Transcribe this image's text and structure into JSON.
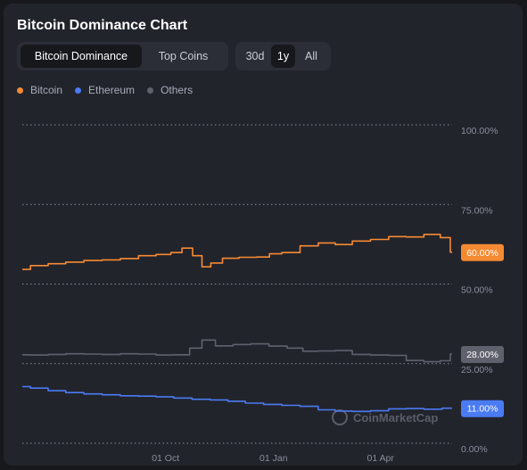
{
  "title": "Bitcoin Dominance Chart",
  "tabs": [
    {
      "label": "Bitcoin Dominance",
      "active": true
    },
    {
      "label": "Top Coins",
      "active": false
    }
  ],
  "ranges": [
    {
      "label": "30d",
      "active": false
    },
    {
      "label": "1y",
      "active": true
    },
    {
      "label": "All",
      "active": false
    }
  ],
  "legend": [
    {
      "label": "Bitcoin",
      "color": "#f68a32"
    },
    {
      "label": "Ethereum",
      "color": "#4a7bf2"
    },
    {
      "label": "Others",
      "color": "#5f626c"
    }
  ],
  "watermark": "CoinMarketCap",
  "chart_data": {
    "type": "line",
    "title": "Bitcoin Dominance Chart",
    "y_tick_labels": [
      "100.00%",
      "75.00%",
      "50.00%",
      "25.00%",
      "0.00%"
    ],
    "y_ticks": [
      100,
      75,
      50,
      25,
      0
    ],
    "ylim": [
      0,
      100
    ],
    "x_tick_labels": [
      "01 Oct",
      "01 Jan",
      "01 Apr"
    ],
    "x_tick_dates": [
      "2023-10-01",
      "2024-01-01",
      "2024-04-01"
    ],
    "xlim": [
      "2023-06-01",
      "2024-06-01"
    ],
    "grid": "horizontal-dotted",
    "legend_position": "top-left",
    "series": [
      {
        "name": "Bitcoin",
        "color": "#f68a32",
        "current_label": "60.00%",
        "points": [
          [
            "2023-06-01",
            54.6
          ],
          [
            "2023-06-15",
            55.8
          ],
          [
            "2023-07-01",
            56.4
          ],
          [
            "2023-07-15",
            56.9
          ],
          [
            "2023-08-01",
            57.4
          ],
          [
            "2023-08-15",
            57.6
          ],
          [
            "2023-09-01",
            58.0
          ],
          [
            "2023-09-15",
            58.9
          ],
          [
            "2023-10-01",
            59.3
          ],
          [
            "2023-10-10",
            59.9
          ],
          [
            "2023-10-20",
            61.3
          ],
          [
            "2023-10-28",
            58.9
          ],
          [
            "2023-11-05",
            55.4
          ],
          [
            "2023-11-12",
            56.6
          ],
          [
            "2023-11-25",
            58.1
          ],
          [
            "2023-12-10",
            58.4
          ],
          [
            "2023-12-25",
            58.5
          ],
          [
            "2024-01-01",
            59.5
          ],
          [
            "2024-01-15",
            59.9
          ],
          [
            "2024-02-01",
            62.0
          ],
          [
            "2024-02-15",
            62.9
          ],
          [
            "2024-03-01",
            62.4
          ],
          [
            "2024-03-15",
            63.5
          ],
          [
            "2024-04-01",
            64.0
          ],
          [
            "2024-04-15",
            64.9
          ],
          [
            "2024-05-01",
            64.8
          ],
          [
            "2024-05-15",
            65.6
          ],
          [
            "2024-05-29",
            64.6
          ],
          [
            "2024-06-01",
            60.0
          ]
        ]
      },
      {
        "name": "Ethereum",
        "color": "#4a7bf2",
        "current_label": "11.00%",
        "points": [
          [
            "2023-06-01",
            17.8
          ],
          [
            "2023-06-15",
            17.3
          ],
          [
            "2023-07-01",
            16.5
          ],
          [
            "2023-07-15",
            15.9
          ],
          [
            "2023-08-01",
            15.5
          ],
          [
            "2023-08-15",
            15.2
          ],
          [
            "2023-09-01",
            14.9
          ],
          [
            "2023-09-15",
            14.8
          ],
          [
            "2023-10-01",
            14.6
          ],
          [
            "2023-10-15",
            14.2
          ],
          [
            "2023-11-01",
            13.8
          ],
          [
            "2023-11-15",
            13.6
          ],
          [
            "2023-12-01",
            13.2
          ],
          [
            "2023-12-15",
            12.6
          ],
          [
            "2024-01-01",
            12.2
          ],
          [
            "2024-01-15",
            11.9
          ],
          [
            "2024-02-01",
            11.6
          ],
          [
            "2024-02-15",
            10.5
          ],
          [
            "2024-03-01",
            10.1
          ],
          [
            "2024-03-15",
            10.0
          ],
          [
            "2024-04-01",
            10.2
          ],
          [
            "2024-04-15",
            10.8
          ],
          [
            "2024-05-01",
            10.9
          ],
          [
            "2024-05-15",
            10.7
          ],
          [
            "2024-06-01",
            11.0
          ]
        ]
      },
      {
        "name": "Others",
        "color": "#5f626c",
        "current_label": "28.00%",
        "points": [
          [
            "2023-06-01",
            27.8
          ],
          [
            "2023-06-15",
            27.7
          ],
          [
            "2023-07-01",
            27.9
          ],
          [
            "2023-07-15",
            28.1
          ],
          [
            "2023-08-01",
            28.0
          ],
          [
            "2023-08-15",
            27.9
          ],
          [
            "2023-09-01",
            28.1
          ],
          [
            "2023-09-15",
            28.0
          ],
          [
            "2023-10-01",
            27.7
          ],
          [
            "2023-10-15",
            27.8
          ],
          [
            "2023-10-28",
            29.9
          ],
          [
            "2023-11-05",
            32.4
          ],
          [
            "2023-11-20",
            30.6
          ],
          [
            "2023-12-05",
            31.0
          ],
          [
            "2023-12-20",
            31.2
          ],
          [
            "2024-01-05",
            30.5
          ],
          [
            "2024-01-20",
            29.9
          ],
          [
            "2024-02-01",
            28.9
          ],
          [
            "2024-02-15",
            29.0
          ],
          [
            "2024-03-01",
            29.1
          ],
          [
            "2024-03-15",
            27.9
          ],
          [
            "2024-04-01",
            27.7
          ],
          [
            "2024-04-15",
            27.6
          ],
          [
            "2024-05-01",
            26.0
          ],
          [
            "2024-05-15",
            25.6
          ],
          [
            "2024-05-29",
            25.9
          ],
          [
            "2024-06-01",
            28.0
          ]
        ]
      }
    ]
  }
}
